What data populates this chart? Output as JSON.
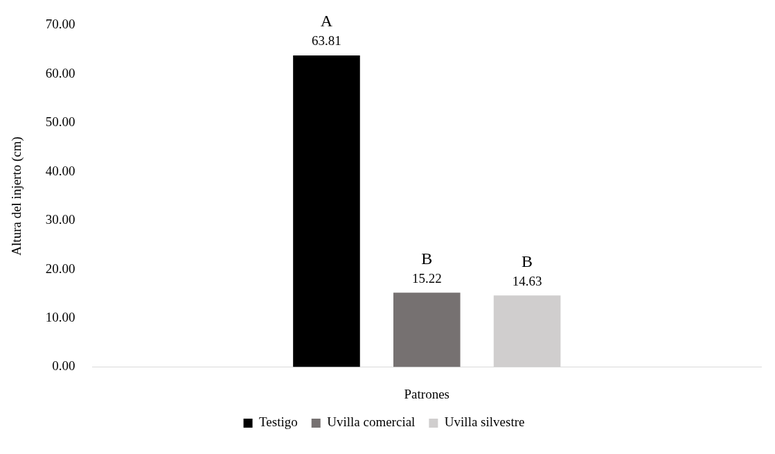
{
  "chart_data": {
    "type": "bar",
    "ylabel": "Altura del injerto (cm)",
    "xlabel": "Patrones",
    "categories": [
      null
    ],
    "series": [
      {
        "name": "Testigo",
        "color": "#000000",
        "values": [
          63.81
        ]
      },
      {
        "name": "Uvilla comercial",
        "color": "#767171",
        "values": [
          15.22
        ]
      },
      {
        "name": "Uvilla silvestre",
        "color": "#d0cece",
        "values": [
          14.63
        ]
      }
    ],
    "ylim": [
      0,
      70
    ],
    "yticks": [
      {
        "value": 0,
        "label": "0.00"
      },
      {
        "value": 10,
        "label": "10.00"
      },
      {
        "value": 20,
        "label": "20.00"
      },
      {
        "value": 30,
        "label": "30.00"
      },
      {
        "value": 40,
        "label": "40.00"
      },
      {
        "value": 50,
        "label": "50.00"
      },
      {
        "value": 60,
        "label": "60.00"
      },
      {
        "value": 70,
        "label": "70.00"
      }
    ],
    "annotations": [
      {
        "text": "A",
        "y": 63.81
      },
      {
        "text": "B",
        "y": 15.22
      },
      {
        "text": "B",
        "y": 14.63
      }
    ],
    "data_labels": true,
    "grid": false,
    "legend": "bottom"
  }
}
